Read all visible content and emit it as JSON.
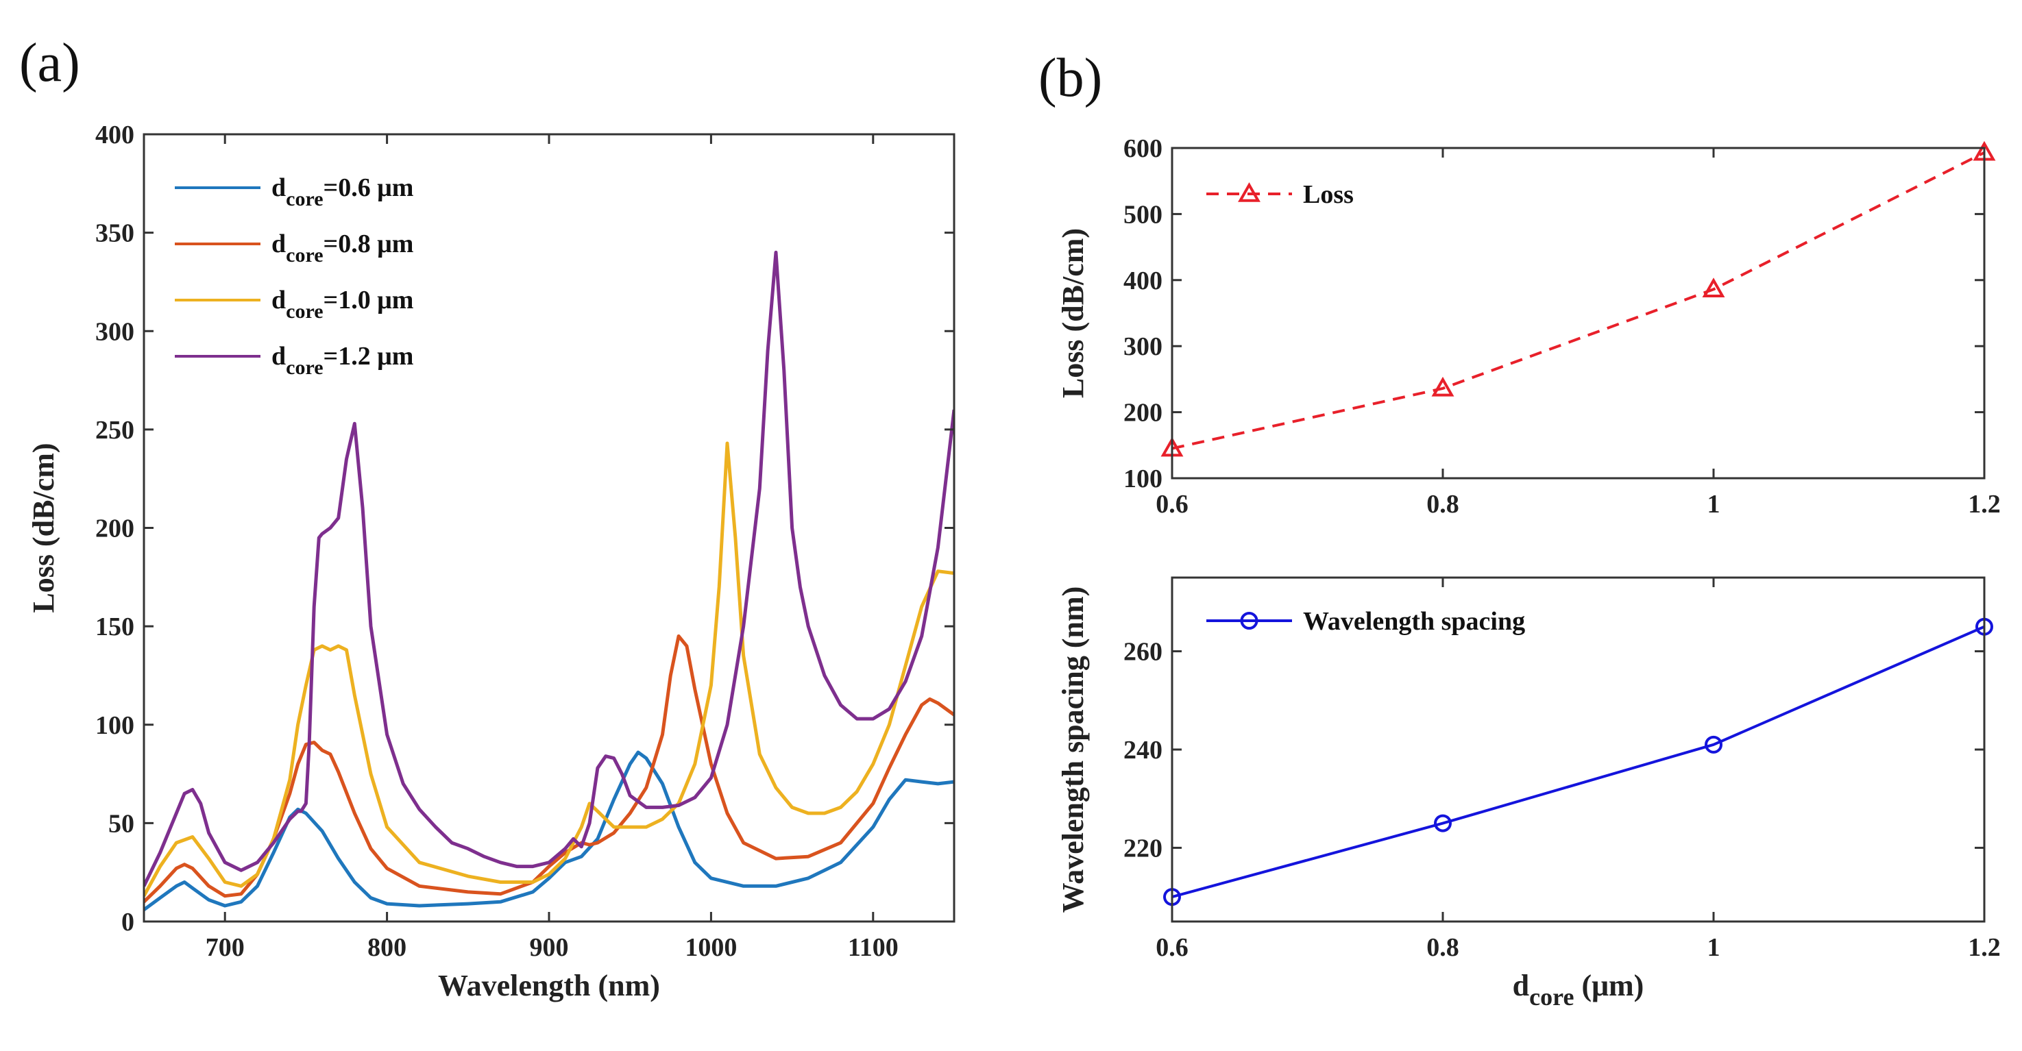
{
  "panels": [
    {
      "id": "a",
      "label": "(a)"
    },
    {
      "id": "b",
      "label": "(b)"
    }
  ],
  "chart_data": [
    {
      "id": "a",
      "type": "line",
      "title": "",
      "xlabel": "Wavelength (nm)",
      "ylabel": "Loss (dB/cm)",
      "xlim": [
        650,
        1150
      ],
      "ylim": [
        0,
        400
      ],
      "xticks": [
        700,
        800,
        900,
        1000,
        1100
      ],
      "yticks": [
        0,
        50,
        100,
        150,
        200,
        250,
        300,
        350,
        400
      ],
      "legend_position": "top-left",
      "series": [
        {
          "name": "0.6",
          "legend": {
            "base": "d",
            "sub": "core",
            "rest": "=0.6 μm"
          },
          "color": "#1f77bd",
          "x": [
            650,
            660,
            670,
            675,
            680,
            690,
            700,
            710,
            720,
            730,
            740,
            745,
            750,
            760,
            770,
            780,
            790,
            800,
            820,
            850,
            870,
            890,
            900,
            910,
            920,
            930,
            940,
            950,
            955,
            960,
            970,
            980,
            990,
            1000,
            1020,
            1040,
            1060,
            1080,
            1100,
            1110,
            1120,
            1130,
            1140,
            1150
          ],
          "y": [
            6,
            12,
            18,
            20,
            17,
            11,
            8,
            10,
            18,
            35,
            53,
            57,
            55,
            46,
            32,
            20,
            12,
            9,
            8,
            9,
            10,
            15,
            22,
            30,
            33,
            42,
            62,
            80,
            86,
            83,
            70,
            48,
            30,
            22,
            18,
            18,
            22,
            30,
            48,
            62,
            72,
            71,
            70,
            71
          ]
        },
        {
          "name": "0.8",
          "legend": {
            "base": "d",
            "sub": "core",
            "rest": "=0.8 μm"
          },
          "color": "#d9531e",
          "x": [
            650,
            660,
            670,
            675,
            680,
            690,
            700,
            710,
            720,
            730,
            740,
            745,
            750,
            755,
            760,
            765,
            770,
            780,
            790,
            800,
            820,
            850,
            870,
            890,
            900,
            910,
            920,
            925,
            930,
            940,
            950,
            960,
            970,
            975,
            980,
            985,
            990,
            1000,
            1010,
            1020,
            1040,
            1060,
            1080,
            1100,
            1110,
            1120,
            1130,
            1135,
            1140,
            1150
          ],
          "y": [
            10,
            18,
            27,
            29,
            27,
            18,
            13,
            14,
            24,
            42,
            65,
            80,
            90,
            91,
            87,
            85,
            76,
            55,
            37,
            27,
            18,
            15,
            14,
            20,
            28,
            35,
            40,
            39,
            40,
            45,
            55,
            68,
            95,
            125,
            145,
            140,
            118,
            80,
            55,
            40,
            32,
            33,
            40,
            60,
            78,
            95,
            110,
            113,
            111,
            105
          ]
        },
        {
          "name": "1.0",
          "legend": {
            "base": "d",
            "sub": "core",
            "rest": "=1.0 μm"
          },
          "color": "#edb120",
          "x": [
            650,
            660,
            670,
            680,
            690,
            700,
            710,
            720,
            730,
            740,
            745,
            750,
            755,
            760,
            765,
            770,
            775,
            780,
            790,
            800,
            820,
            850,
            870,
            890,
            900,
            910,
            920,
            925,
            930,
            940,
            950,
            960,
            970,
            980,
            990,
            1000,
            1005,
            1010,
            1015,
            1020,
            1030,
            1040,
            1050,
            1060,
            1070,
            1080,
            1090,
            1100,
            1110,
            1120,
            1130,
            1140,
            1150
          ],
          "y": [
            13,
            28,
            40,
            43,
            32,
            20,
            18,
            24,
            42,
            72,
            100,
            120,
            138,
            140,
            138,
            140,
            138,
            115,
            75,
            48,
            30,
            23,
            20,
            20,
            24,
            32,
            48,
            60,
            56,
            48,
            48,
            48,
            52,
            60,
            80,
            120,
            170,
            243,
            195,
            135,
            85,
            68,
            58,
            55,
            55,
            58,
            66,
            80,
            100,
            130,
            160,
            178,
            177
          ]
        },
        {
          "name": "1.2",
          "legend": {
            "base": "d",
            "sub": "core",
            "rest": "=1.2 μm"
          },
          "color": "#7e2f8e",
          "x": [
            650,
            660,
            670,
            675,
            680,
            685,
            690,
            700,
            710,
            720,
            730,
            740,
            745,
            747,
            750,
            752,
            755,
            758,
            760,
            765,
            770,
            775,
            780,
            785,
            790,
            800,
            810,
            820,
            830,
            840,
            850,
            860,
            870,
            880,
            890,
            900,
            910,
            915,
            920,
            925,
            930,
            935,
            940,
            945,
            950,
            960,
            970,
            980,
            990,
            1000,
            1010,
            1020,
            1030,
            1035,
            1040,
            1045,
            1050,
            1055,
            1060,
            1070,
            1080,
            1090,
            1100,
            1110,
            1120,
            1130,
            1140,
            1150
          ],
          "y": [
            18,
            35,
            55,
            65,
            67,
            60,
            45,
            30,
            26,
            30,
            40,
            52,
            56,
            56,
            60,
            90,
            160,
            195,
            197,
            200,
            205,
            235,
            253,
            210,
            150,
            95,
            70,
            57,
            48,
            40,
            37,
            33,
            30,
            28,
            28,
            30,
            37,
            42,
            38,
            50,
            78,
            84,
            83,
            75,
            64,
            58,
            58,
            59,
            63,
            73,
            100,
            150,
            220,
            290,
            340,
            280,
            200,
            170,
            150,
            125,
            110,
            103,
            103,
            108,
            122,
            145,
            190,
            260
          ]
        }
      ]
    },
    {
      "id": "b-top",
      "type": "line",
      "title": "",
      "xlabel": "",
      "ylabel": "Loss (dB/cm)",
      "xlim": [
        0.6,
        1.2
      ],
      "ylim": [
        100,
        600
      ],
      "xticks": [
        0.6,
        0.8,
        1,
        1.2
      ],
      "xticklabels": [
        "0.6",
        "0.8",
        "1",
        "1.2"
      ],
      "yticks": [
        100,
        200,
        300,
        400,
        500,
        600
      ],
      "legend_position": "top-left",
      "series": [
        {
          "name": "Loss",
          "color": "#e8202a",
          "style": "dashed",
          "marker": "triangle",
          "x": [
            0.6,
            0.8,
            1.0,
            1.2
          ],
          "y": [
            145,
            236,
            386,
            593
          ]
        }
      ]
    },
    {
      "id": "b-bottom",
      "type": "line",
      "title": "",
      "xlabel": {
        "base": "d",
        "sub": "core",
        "rest": " (μm)"
      },
      "ylabel": "Wavelength spacing (nm)",
      "xlim": [
        0.6,
        1.2
      ],
      "ylim": [
        205,
        275
      ],
      "xticks": [
        0.6,
        0.8,
        1,
        1.2
      ],
      "xticklabels": [
        "0.6",
        "0.8",
        "1",
        "1.2"
      ],
      "yticks": [
        220,
        240,
        260
      ],
      "legend_position": "top-left",
      "series": [
        {
          "name": "Wavelength spacing",
          "color": "#1414dc",
          "style": "solid",
          "marker": "circle",
          "x": [
            0.6,
            0.8,
            1.0,
            1.2
          ],
          "y": [
            210,
            225,
            241,
            265
          ]
        }
      ]
    }
  ]
}
